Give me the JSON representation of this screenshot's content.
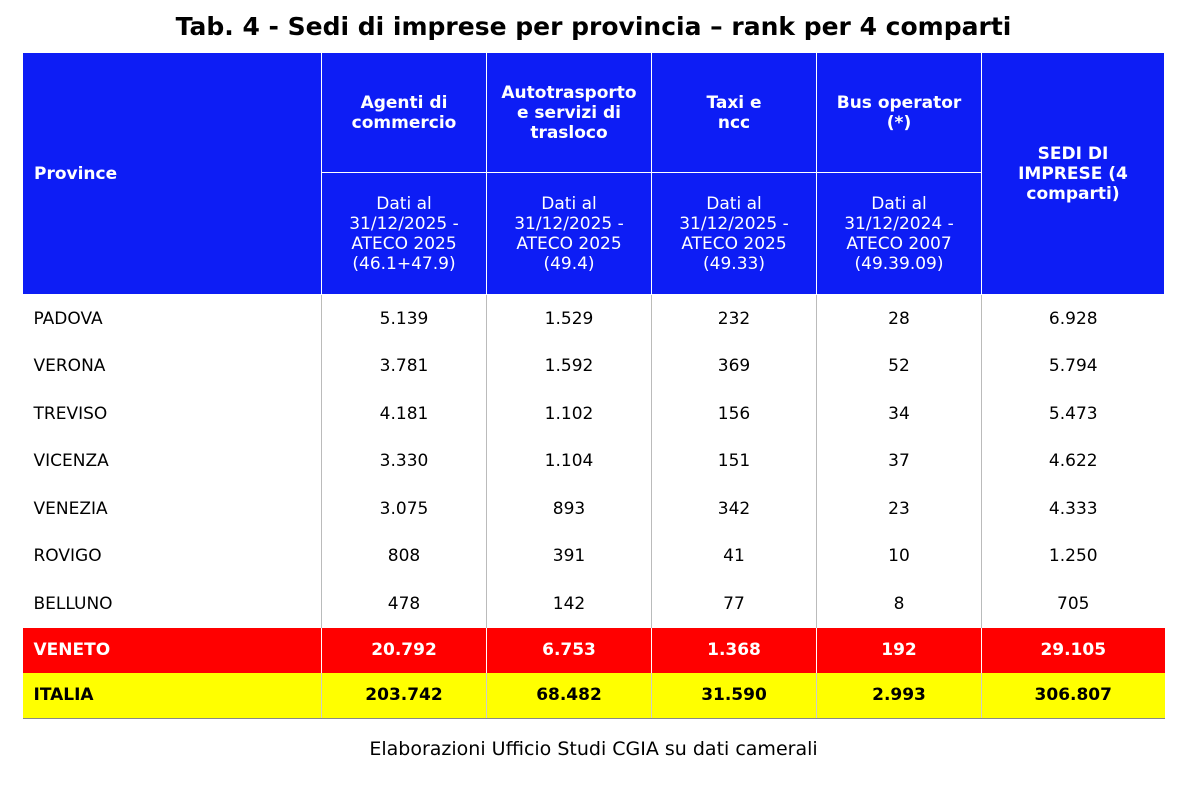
{
  "title": "Tab. 4 - Sedi di imprese per provincia – rank per 4 comparti",
  "table": {
    "province_header": "Province",
    "columns": [
      {
        "name": "Agenti di commercio",
        "subtitle": "Dati al 31/12/2025 - ATECO 2025 (46.1+47.9)"
      },
      {
        "name": "Autotrasporto e servizi di trasloco",
        "subtitle": "Dati al 31/12/2025 - ATECO 2025 (49.4)"
      },
      {
        "name": "Taxi e ncc",
        "subtitle": "Dati al 31/12/2025 - ATECO 2025 (49.33)"
      },
      {
        "name": "Bus operator (*)",
        "subtitle": "Dati al 31/12/2024 - ATECO 2007 (49.39.09)"
      }
    ],
    "total_header": "SEDI DI IMPRESE (4 comparti)",
    "rows": [
      [
        "PADOVA",
        "5.139",
        "1.529",
        "232",
        "28",
        "6.928"
      ],
      [
        "VERONA",
        "3.781",
        "1.592",
        "369",
        "52",
        "5.794"
      ],
      [
        "TREVISO",
        "4.181",
        "1.102",
        "156",
        "34",
        "5.473"
      ],
      [
        "VICENZA",
        "3.330",
        "1.104",
        "151",
        "37",
        "4.622"
      ],
      [
        "VENEZIA",
        "3.075",
        "893",
        "342",
        "23",
        "4.333"
      ],
      [
        "ROVIGO",
        "808",
        "391",
        "41",
        "10",
        "1.250"
      ],
      [
        "BELLUNO",
        "478",
        "142",
        "77",
        "8",
        "705"
      ],
      [
        "VENETO",
        "20.792",
        "6.753",
        "1.368",
        "192",
        "29.105"
      ],
      [
        "ITALIA",
        "203.742",
        "68.482",
        "31.590",
        "2.993",
        "306.807"
      ]
    ]
  },
  "footer": "Elaborazioni Ufficio Studi CGIA su dati camerali"
}
